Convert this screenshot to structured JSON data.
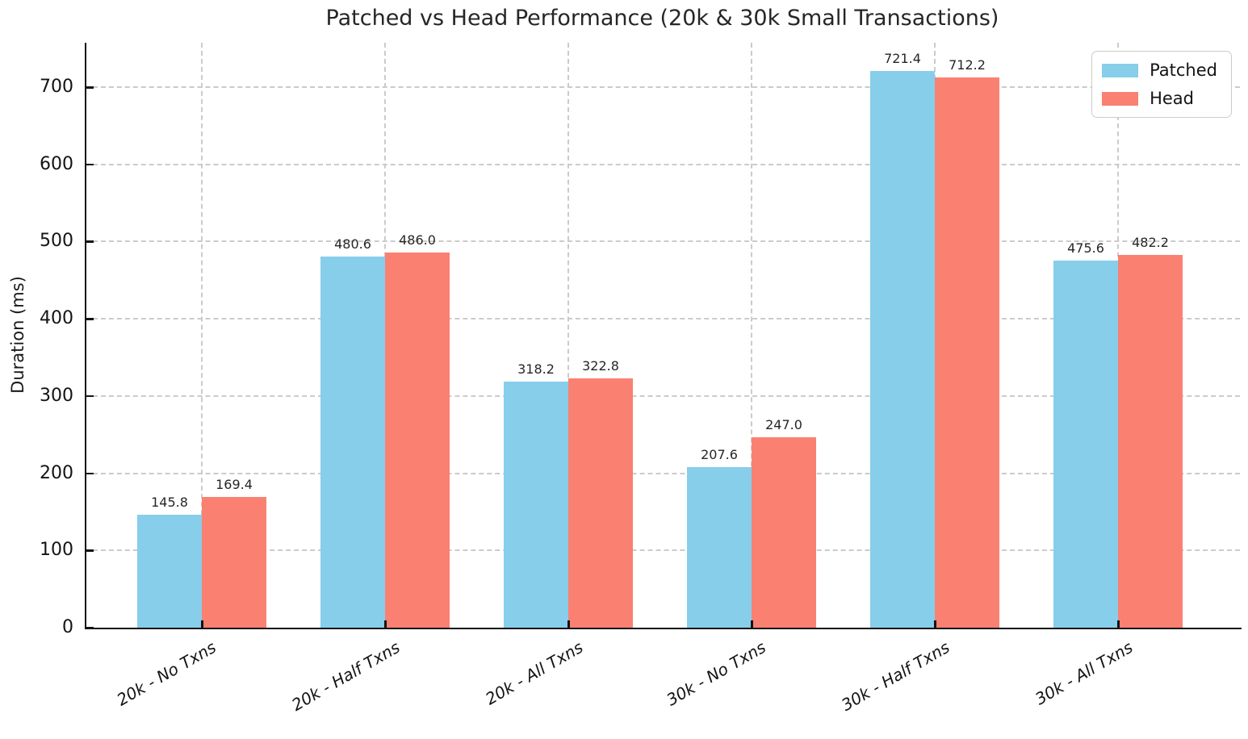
{
  "chart_data": {
    "type": "bar",
    "title": "Patched vs Head Performance (20k & 30k Small Transactions)",
    "xlabel": "",
    "ylabel": "Duration (ms)",
    "categories": [
      "20k - No Txns",
      "20k - Half Txns",
      "20k - All Txns",
      "30k - No Txns",
      "30k - Half Txns",
      "30k - All Txns"
    ],
    "series": [
      {
        "name": "Patched",
        "color": "#87CEEB",
        "values": [
          145.8,
          480.6,
          318.2,
          207.6,
          721.4,
          475.6
        ]
      },
      {
        "name": "Head",
        "color": "#FA8072",
        "values": [
          169.4,
          486.0,
          322.8,
          247.0,
          712.2,
          482.2
        ]
      }
    ],
    "yticks": [
      0,
      100,
      200,
      300,
      400,
      500,
      600,
      700
    ],
    "ylim": [
      0,
      757.5
    ],
    "grid": "dashed, both axes",
    "legend_position": "upper right",
    "tick_label_style": "x labels italic, rotated 30deg"
  }
}
